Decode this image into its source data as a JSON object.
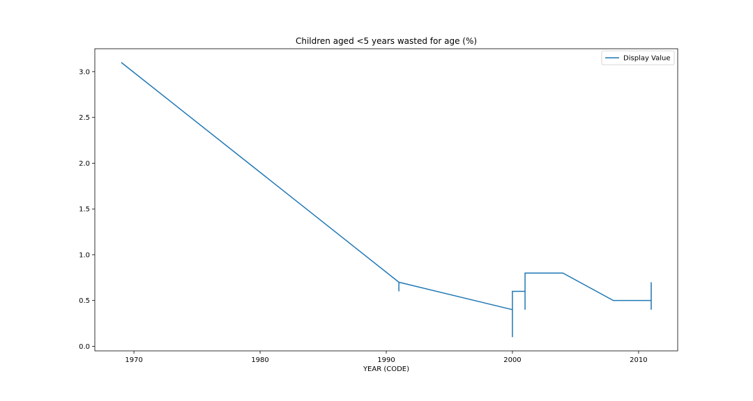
{
  "chart_data": {
    "type": "line",
    "title": "Children aged <5 years wasted for age (%)",
    "xlabel": "YEAR (CODE)",
    "ylabel": "",
    "xlim": [
      1966.9,
      2013.1
    ],
    "ylim": [
      -0.05,
      3.25
    ],
    "xticks": [
      1970,
      1980,
      1990,
      2000,
      2010
    ],
    "yticks": [
      0.0,
      0.5,
      1.0,
      1.5,
      2.0,
      2.5,
      3.0
    ],
    "xtick_labels": [
      "1970",
      "1980",
      "1990",
      "2000",
      "2010"
    ],
    "ytick_labels": [
      "0.0",
      "0.5",
      "1.0",
      "1.5",
      "2.0",
      "2.5",
      "3.0"
    ],
    "grid": false,
    "legend": "top-right",
    "color": "#1f77b4",
    "series": [
      {
        "name": "Display Value",
        "x": [
          1969,
          1991,
          1991,
          1991,
          2000,
          2000,
          2000,
          2001,
          2001,
          2001,
          2004,
          2008,
          2011,
          2011,
          2011
        ],
        "y": [
          3.1,
          0.7,
          0.6,
          0.7,
          0.4,
          0.1,
          0.6,
          0.6,
          0.4,
          0.8,
          0.8,
          0.5,
          0.5,
          0.4,
          0.7
        ]
      }
    ]
  }
}
